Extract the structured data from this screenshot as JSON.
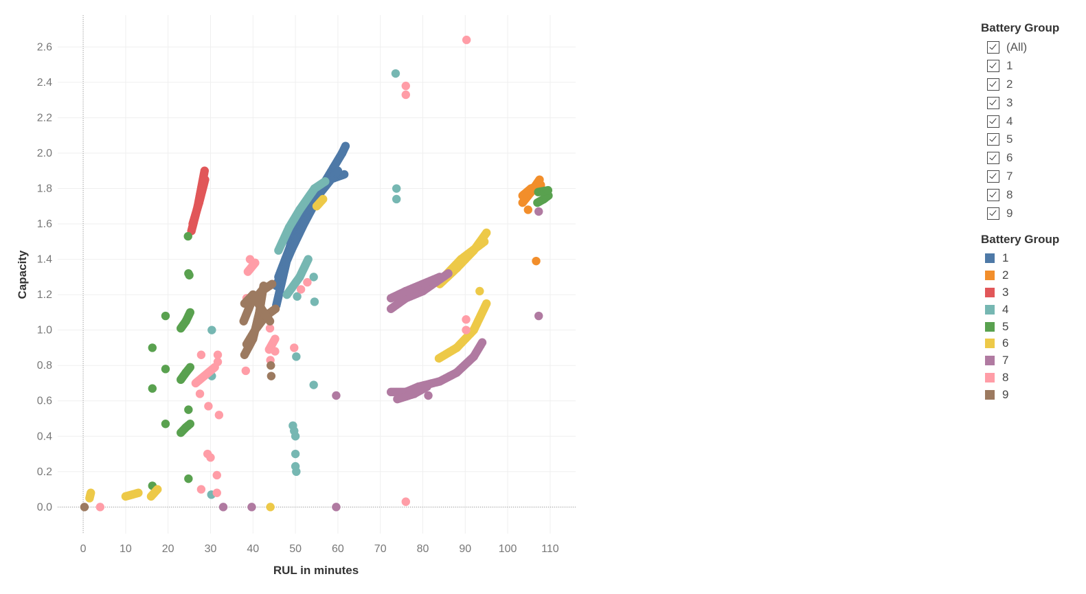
{
  "chart_data": {
    "type": "scatter",
    "xlabel": "RUL in minutes",
    "ylabel": "Capacity",
    "xlim": [
      -6,
      116
    ],
    "ylim": [
      -0.15,
      2.78
    ],
    "xticks": [
      0,
      10,
      20,
      30,
      40,
      50,
      60,
      70,
      80,
      90,
      100,
      110
    ],
    "yticks": [
      0.0,
      0.2,
      0.4,
      0.6,
      0.8,
      1.0,
      1.2,
      1.4,
      1.6,
      1.8,
      2.0,
      2.2,
      2.4,
      2.6
    ],
    "grid": true,
    "zero_lines": true,
    "series": [
      {
        "name": "1",
        "color": "#4e79a7",
        "points": [],
        "segments": [
          [
            [
              45.5,
              1.14
            ],
            [
              49,
              1.5
            ],
            [
              53,
              1.72
            ],
            [
              56,
              1.8
            ],
            [
              59,
              1.92
            ],
            [
              61,
              2.0
            ],
            [
              61.8,
              2.04
            ]
          ],
          [
            [
              46,
              1.3
            ],
            [
              50,
              1.55
            ],
            [
              54,
              1.72
            ],
            [
              58,
              1.85
            ],
            [
              61.5,
              1.88
            ]
          ],
          [
            [
              45.5,
              1.25
            ],
            [
              49,
              1.45
            ],
            [
              52,
              1.6
            ],
            [
              56,
              1.78
            ],
            [
              60,
              1.9
            ]
          ]
        ]
      },
      {
        "name": "2",
        "color": "#f28e2b",
        "points": [
          [
            106.7,
            1.39
          ],
          [
            104.8,
            1.68
          ]
        ],
        "segments": [
          [
            [
              103.5,
              1.72
            ],
            [
              105.5,
              1.78
            ],
            [
              107.5,
              1.85
            ]
          ],
          [
            [
              103.5,
              1.76
            ],
            [
              105.5,
              1.8
            ],
            [
              107.8,
              1.82
            ]
          ]
        ]
      },
      {
        "name": "3",
        "color": "#e15759",
        "points": [],
        "segments": [
          [
            [
              25.5,
              1.56
            ],
            [
              27,
              1.7
            ],
            [
              28.6,
              1.9
            ]
          ],
          [
            [
              25.8,
              1.6
            ],
            [
              27.3,
              1.72
            ],
            [
              28.7,
              1.85
            ]
          ]
        ]
      },
      {
        "name": "4",
        "color": "#76b7b2",
        "points": [
          [
            73.6,
            2.45
          ],
          [
            73.8,
            1.8
          ],
          [
            73.8,
            1.74
          ],
          [
            30.3,
            1.0
          ],
          [
            30.3,
            0.74
          ],
          [
            30.2,
            0.07
          ],
          [
            50.2,
            0.85
          ],
          [
            54.3,
            0.69
          ],
          [
            54.5,
            1.16
          ],
          [
            50.4,
            1.19
          ],
          [
            54.3,
            1.3
          ],
          [
            49.4,
            0.46
          ],
          [
            49.7,
            0.43
          ],
          [
            50.0,
            0.4
          ],
          [
            50.0,
            0.3
          ],
          [
            50.0,
            0.23
          ],
          [
            50.2,
            0.2
          ]
        ],
        "segments": [
          [
            [
              46,
              1.45
            ],
            [
              48.5,
              1.58
            ],
            [
              51,
              1.68
            ],
            [
              54.5,
              1.8
            ],
            [
              57,
              1.84
            ]
          ],
          [
            [
              48,
              1.2
            ],
            [
              51,
              1.3
            ],
            [
              53,
              1.4
            ]
          ]
        ]
      },
      {
        "name": "5",
        "color": "#59a14f",
        "points": [
          [
            24.7,
            1.53
          ],
          [
            24.8,
            1.32
          ],
          [
            25.0,
            1.31
          ],
          [
            19.4,
            1.08
          ],
          [
            16.3,
            0.9
          ],
          [
            19.4,
            0.78
          ],
          [
            16.3,
            0.67
          ],
          [
            19.4,
            0.47
          ],
          [
            24.8,
            0.55
          ],
          [
            24.8,
            0.16
          ],
          [
            16.3,
            0.12
          ]
        ],
        "segments": [
          [
            [
              23,
              1.01
            ],
            [
              24.2,
              1.05
            ],
            [
              25.2,
              1.1
            ]
          ],
          [
            [
              23,
              0.72
            ],
            [
              24.2,
              0.76
            ],
            [
              25.2,
              0.79
            ]
          ],
          [
            [
              23,
              0.42
            ],
            [
              24.2,
              0.45
            ],
            [
              25.2,
              0.47
            ]
          ],
          [
            [
              107,
              1.72
            ],
            [
              108.5,
              1.74
            ],
            [
              109.6,
              1.76
            ]
          ],
          [
            [
              107.2,
              1.78
            ],
            [
              109.5,
              1.79
            ]
          ]
        ]
      },
      {
        "name": "6",
        "color": "#edc948",
        "points": [
          [
            93.4,
            1.22
          ],
          [
            44.1,
            0.0
          ]
        ],
        "segments": [
          [
            [
              1.5,
              0.05
            ],
            [
              1.8,
              0.08
            ]
          ],
          [
            [
              10,
              0.06
            ],
            [
              13,
              0.08
            ]
          ],
          [
            [
              16,
              0.06
            ],
            [
              17.5,
              0.1
            ]
          ],
          [
            [
              84,
              1.26
            ],
            [
              88,
              1.35
            ],
            [
              92,
              1.45
            ],
            [
              95,
              1.55
            ]
          ],
          [
            [
              85,
              1.3
            ],
            [
              89,
              1.4
            ],
            [
              94.5,
              1.5
            ]
          ],
          [
            [
              83.8,
              0.84
            ],
            [
              88,
              0.9
            ],
            [
              92,
              1.0
            ],
            [
              95,
              1.15
            ]
          ],
          [
            [
              55,
              1.7
            ],
            [
              56.5,
              1.74
            ]
          ]
        ]
      },
      {
        "name": "7",
        "color": "#b07aa1",
        "points": [
          [
            107.3,
            1.67
          ],
          [
            107.3,
            1.08
          ],
          [
            59.6,
            0.63
          ],
          [
            81.3,
            0.63
          ],
          [
            33.0,
            0.0
          ],
          [
            39.7,
            0.0
          ],
          [
            59.6,
            0.0
          ]
        ],
        "segments": [
          [
            [
              72.5,
              1.12
            ],
            [
              76,
              1.18
            ],
            [
              80,
              1.22
            ],
            [
              83,
              1.27
            ],
            [
              86,
              1.32
            ]
          ],
          [
            [
              72.5,
              1.18
            ],
            [
              76,
              1.22
            ],
            [
              80,
              1.26
            ],
            [
              84,
              1.3
            ]
          ],
          [
            [
              72.5,
              0.65
            ],
            [
              76,
              0.65
            ],
            [
              79,
              0.68
            ],
            [
              84,
              0.71
            ],
            [
              88,
              0.76
            ],
            [
              92,
              0.85
            ],
            [
              94,
              0.93
            ]
          ],
          [
            [
              74,
              0.61
            ],
            [
              78,
              0.64
            ],
            [
              81,
              0.68
            ]
          ]
        ]
      },
      {
        "name": "8",
        "color": "#ff9da7",
        "points": [
          [
            90.3,
            2.64
          ],
          [
            76.0,
            2.38
          ],
          [
            76.0,
            2.33
          ],
          [
            76.0,
            0.03
          ],
          [
            4.0,
            0.0
          ],
          [
            90.2,
            1.06
          ],
          [
            90.2,
            1.0
          ],
          [
            38.5,
            1.18
          ],
          [
            38.3,
            0.77
          ],
          [
            27.8,
            0.86
          ],
          [
            31.7,
            0.86
          ],
          [
            31.7,
            0.82
          ],
          [
            27.5,
            0.64
          ],
          [
            29.5,
            0.57
          ],
          [
            32.0,
            0.52
          ],
          [
            29.3,
            0.3
          ],
          [
            30.0,
            0.28
          ],
          [
            31.5,
            0.18
          ],
          [
            27.8,
            0.1
          ],
          [
            31.5,
            0.08
          ],
          [
            39.3,
            1.4
          ],
          [
            51.3,
            1.23
          ],
          [
            52.8,
            1.27
          ],
          [
            45.2,
            0.88
          ],
          [
            49.7,
            0.9
          ],
          [
            44.1,
            0.83
          ],
          [
            44.0,
            1.01
          ]
        ],
        "segments": [
          [
            [
              26.5,
              0.7
            ],
            [
              28.5,
              0.74
            ],
            [
              31,
              0.79
            ]
          ],
          [
            [
              38.8,
              1.33
            ],
            [
              40.5,
              1.38
            ]
          ],
          [
            [
              43.8,
              0.89
            ],
            [
              45.2,
              0.95
            ]
          ]
        ]
      },
      {
        "name": "9",
        "color": "#9c7a60",
        "points": [
          [
            0.3,
            0.0
          ],
          [
            44.3,
            0.74
          ],
          [
            44.2,
            0.8
          ]
        ],
        "segments": [
          [
            [
              38,
              0.86
            ],
            [
              40,
              0.95
            ],
            [
              41.5,
              1.1
            ],
            [
              42.5,
              1.25
            ]
          ],
          [
            [
              37.8,
              1.05
            ],
            [
              39.5,
              1.15
            ],
            [
              42,
              1.22
            ],
            [
              44.5,
              1.26
            ]
          ],
          [
            [
              38.5,
              0.92
            ],
            [
              40.5,
              1.0
            ],
            [
              43,
              1.08
            ],
            [
              45.3,
              1.12
            ]
          ],
          [
            [
              38,
              1.15
            ],
            [
              40,
              1.2
            ],
            [
              42,
              1.12
            ],
            [
              44,
              1.05
            ]
          ]
        ]
      }
    ]
  },
  "filter": {
    "title": "Battery Group",
    "items": [
      {
        "label": "(All)",
        "checked": true
      },
      {
        "label": "1",
        "checked": true
      },
      {
        "label": "2",
        "checked": true
      },
      {
        "label": "3",
        "checked": true
      },
      {
        "label": "4",
        "checked": true
      },
      {
        "label": "5",
        "checked": true
      },
      {
        "label": "6",
        "checked": true
      },
      {
        "label": "7",
        "checked": true
      },
      {
        "label": "8",
        "checked": true
      },
      {
        "label": "9",
        "checked": true
      }
    ]
  },
  "color_legend": {
    "title": "Battery Group",
    "items": [
      {
        "label": "1",
        "color": "#4e79a7"
      },
      {
        "label": "2",
        "color": "#f28e2b"
      },
      {
        "label": "3",
        "color": "#e15759"
      },
      {
        "label": "4",
        "color": "#76b7b2"
      },
      {
        "label": "5",
        "color": "#59a14f"
      },
      {
        "label": "6",
        "color": "#edc948"
      },
      {
        "label": "7",
        "color": "#b07aa1"
      },
      {
        "label": "8",
        "color": "#ff9da7"
      },
      {
        "label": "9",
        "color": "#9c7a60"
      }
    ]
  }
}
